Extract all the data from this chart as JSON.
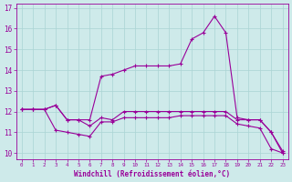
{
  "xlabel": "Windchill (Refroidissement éolien,°C)",
  "background_color": "#ceeaea",
  "line_color": "#990099",
  "grid_color": "#aad4d4",
  "x": [
    0,
    1,
    2,
    3,
    4,
    5,
    6,
    7,
    8,
    9,
    10,
    11,
    12,
    13,
    14,
    15,
    16,
    17,
    18,
    19,
    20,
    21,
    22,
    23
  ],
  "y_hi": [
    12.1,
    12.1,
    12.1,
    12.3,
    11.6,
    11.6,
    11.6,
    13.7,
    13.8,
    14.0,
    14.2,
    14.2,
    14.2,
    14.2,
    14.3,
    15.5,
    15.8,
    16.6,
    15.8,
    11.7,
    11.6,
    11.6,
    11.0,
    10.0
  ],
  "y_mid": [
    12.1,
    12.1,
    12.1,
    12.3,
    11.6,
    11.6,
    11.3,
    11.7,
    11.6,
    12.0,
    12.0,
    12.0,
    12.0,
    12.0,
    12.0,
    12.0,
    12.0,
    12.0,
    12.0,
    11.6,
    11.6,
    11.6,
    11.0,
    10.1
  ],
  "y_lo": [
    12.1,
    12.1,
    12.1,
    11.1,
    11.0,
    10.9,
    10.8,
    11.5,
    11.5,
    11.7,
    11.7,
    11.7,
    11.7,
    11.7,
    11.8,
    11.8,
    11.8,
    11.8,
    11.8,
    11.4,
    11.3,
    11.2,
    10.2,
    10.0
  ],
  "ylim": [
    9.7,
    17.2
  ],
  "xlim": [
    -0.5,
    23.5
  ],
  "yticks": [
    10,
    11,
    12,
    13,
    14,
    15,
    16,
    17
  ],
  "xticks": [
    0,
    1,
    2,
    3,
    4,
    5,
    6,
    7,
    8,
    9,
    10,
    11,
    12,
    13,
    14,
    15,
    16,
    17,
    18,
    19,
    20,
    21,
    22,
    23
  ],
  "figsize": [
    3.2,
    2.0
  ],
  "dpi": 100
}
